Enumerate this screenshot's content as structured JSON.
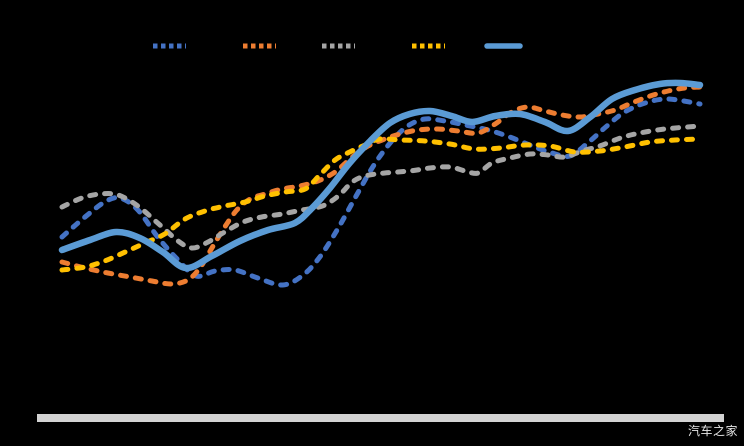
{
  "watermark": {
    "text": "汽车之家",
    "color": "rgba(255,255,255,0.9)"
  },
  "axis_bar": {
    "color": "#D3D3D3"
  },
  "background_color": "#000000",
  "legend": {
    "items": [
      {
        "name": "blue",
        "color": "#4472C4",
        "style": "dashed"
      },
      {
        "name": "orange",
        "color": "#ED7D31",
        "style": "dashed"
      },
      {
        "name": "gray",
        "color": "#A5A5A5",
        "style": "dashed"
      },
      {
        "name": "yellow",
        "color": "#FFC000",
        "style": "dashed"
      },
      {
        "name": "light-blue",
        "color": "#5B9BD5",
        "style": "solid"
      }
    ]
  },
  "chart_data": {
    "type": "line",
    "title": "",
    "note": "No axis tick labels, gridlines or data labels are visible; x and y are estimated on a relative 0-100 scale read from line positions.",
    "xlim": [
      0,
      100
    ],
    "ylim": [
      0,
      100
    ],
    "grid": false,
    "legend_position": "top",
    "series": [
      {
        "name": "blue",
        "color": "#4472C4",
        "style": "dashed",
        "points": [
          [
            0,
            37.2
          ],
          [
            3.6,
            45.2
          ],
          [
            6.7,
            51.2
          ],
          [
            9.1,
            52.8
          ],
          [
            11.9,
            48
          ],
          [
            15,
            37.2
          ],
          [
            18.2,
            28
          ],
          [
            21,
            21.6
          ],
          [
            24,
            23.6
          ],
          [
            27.1,
            24
          ],
          [
            30.7,
            20.8
          ],
          [
            34.6,
            18
          ],
          [
            37.8,
            22
          ],
          [
            40.4,
            29.2
          ],
          [
            43.3,
            40.8
          ],
          [
            46.1,
            53.6
          ],
          [
            48.9,
            66
          ],
          [
            51.7,
            75.6
          ],
          [
            54.2,
            81.6
          ],
          [
            56.9,
            84.4
          ],
          [
            60,
            83.6
          ],
          [
            63.2,
            82
          ],
          [
            66.8,
            80
          ],
          [
            70.2,
            77.2
          ],
          [
            73.7,
            73.6
          ],
          [
            76.8,
            70.8
          ],
          [
            79.6,
            69.6
          ],
          [
            82.4,
            74.8
          ],
          [
            85.4,
            81.6
          ],
          [
            88.2,
            87.2
          ],
          [
            91.4,
            90.8
          ],
          [
            95,
            92.4
          ],
          [
            100,
            90.4
          ]
        ]
      },
      {
        "name": "orange",
        "color": "#ED7D31",
        "style": "dashed",
        "points": [
          [
            0,
            27.2
          ],
          [
            3.6,
            24.8
          ],
          [
            7.2,
            22.8
          ],
          [
            10.7,
            21.2
          ],
          [
            14.1,
            19.6
          ],
          [
            17.2,
            18.4
          ],
          [
            19.7,
            20
          ],
          [
            21.6,
            24.8
          ],
          [
            23.5,
            32.8
          ],
          [
            25.4,
            40.8
          ],
          [
            27.4,
            48
          ],
          [
            29.5,
            52.4
          ],
          [
            31.8,
            54.4
          ],
          [
            34.5,
            56.4
          ],
          [
            37.3,
            57.6
          ],
          [
            40.1,
            59.6
          ],
          [
            42.8,
            63.2
          ],
          [
            45.5,
            69.2
          ],
          [
            48,
            73.6
          ],
          [
            50.6,
            76.4
          ],
          [
            53,
            78.4
          ],
          [
            55.8,
            80
          ],
          [
            58.9,
            80.4
          ],
          [
            62.1,
            79.6
          ],
          [
            65.2,
            78.8
          ],
          [
            67.9,
            82.4
          ],
          [
            70.5,
            87.2
          ],
          [
            73,
            89.2
          ],
          [
            75.7,
            87.6
          ],
          [
            78.4,
            86
          ],
          [
            81.2,
            85.2
          ],
          [
            84,
            86.4
          ],
          [
            86.7,
            88
          ],
          [
            89.3,
            90.8
          ],
          [
            92.2,
            93.6
          ],
          [
            95,
            95.6
          ],
          [
            97.6,
            96.8
          ],
          [
            100,
            97.2
          ]
        ]
      },
      {
        "name": "gray",
        "color": "#A5A5A5",
        "style": "dashed",
        "points": [
          [
            0,
            49.2
          ],
          [
            3.1,
            52.8
          ],
          [
            6,
            54.4
          ],
          [
            8.8,
            54
          ],
          [
            11.9,
            49.6
          ],
          [
            15,
            42.8
          ],
          [
            18.2,
            35.6
          ],
          [
            20.4,
            32.8
          ],
          [
            22.9,
            35.2
          ],
          [
            25.5,
            39.2
          ],
          [
            28.4,
            43.2
          ],
          [
            31.3,
            45.2
          ],
          [
            34.5,
            46.4
          ],
          [
            37.6,
            48
          ],
          [
            40.8,
            49.6
          ],
          [
            43.3,
            53.6
          ],
          [
            45.5,
            59.2
          ],
          [
            47.5,
            61.6
          ],
          [
            50.6,
            62.8
          ],
          [
            54.5,
            63.6
          ],
          [
            57.7,
            64.8
          ],
          [
            60.8,
            65.2
          ],
          [
            63.2,
            63.6
          ],
          [
            65.2,
            62.8
          ],
          [
            67.4,
            66.8
          ],
          [
            70.2,
            68.8
          ],
          [
            73.4,
            70.4
          ],
          [
            76.2,
            70
          ],
          [
            78.8,
            69.2
          ],
          [
            81.5,
            71.6
          ],
          [
            84.3,
            73.6
          ],
          [
            87.5,
            76.8
          ],
          [
            90.6,
            78.8
          ],
          [
            94.5,
            80.4
          ],
          [
            100,
            81.6
          ]
        ]
      },
      {
        "name": "yellow",
        "color": "#FFC000",
        "style": "dashed",
        "points": [
          [
            0,
            24
          ],
          [
            3.6,
            25.2
          ],
          [
            6.7,
            27.6
          ],
          [
            9.9,
            31.2
          ],
          [
            13,
            34.8
          ],
          [
            16.1,
            38.4
          ],
          [
            19.3,
            44.4
          ],
          [
            22.4,
            47.6
          ],
          [
            25.5,
            49.6
          ],
          [
            28.7,
            51.2
          ],
          [
            31.8,
            53.6
          ],
          [
            35,
            55.2
          ],
          [
            38.1,
            56.4
          ],
          [
            40.4,
            62
          ],
          [
            42.8,
            68
          ],
          [
            45.1,
            71.2
          ],
          [
            47.5,
            74
          ],
          [
            49.8,
            76.4
          ],
          [
            53,
            76
          ],
          [
            56.9,
            75.6
          ],
          [
            60.8,
            74.4
          ],
          [
            64.7,
            72.4
          ],
          [
            68.7,
            72.8
          ],
          [
            72.6,
            74
          ],
          [
            76.5,
            73.6
          ],
          [
            80.4,
            71.2
          ],
          [
            84.3,
            71.6
          ],
          [
            88.2,
            73.2
          ],
          [
            92.2,
            75.2
          ],
          [
            96.1,
            76
          ],
          [
            100,
            76.4
          ]
        ]
      },
      {
        "name": "light-blue",
        "color": "#5B9BD5",
        "style": "solid",
        "points": [
          [
            0,
            32
          ],
          [
            4.4,
            36
          ],
          [
            8.5,
            39.2
          ],
          [
            12.2,
            36.8
          ],
          [
            15.8,
            31.2
          ],
          [
            19.4,
            24.8
          ],
          [
            23.5,
            29.6
          ],
          [
            27.9,
            35.6
          ],
          [
            32.3,
            40
          ],
          [
            36.5,
            42.8
          ],
          [
            39.2,
            48.8
          ],
          [
            42,
            56.8
          ],
          [
            45.1,
            66.8
          ],
          [
            48.3,
            75.6
          ],
          [
            51.4,
            82.8
          ],
          [
            54.5,
            86.4
          ],
          [
            57.7,
            87.6
          ],
          [
            61.1,
            85.6
          ],
          [
            64.3,
            83.2
          ],
          [
            67.9,
            85.6
          ],
          [
            71.8,
            86.4
          ],
          [
            75.7,
            83.2
          ],
          [
            79.3,
            79.6
          ],
          [
            82.8,
            85.2
          ],
          [
            86.2,
            92.4
          ],
          [
            89.8,
            96
          ],
          [
            93.7,
            98.4
          ],
          [
            96.9,
            98.8
          ],
          [
            100,
            98
          ]
        ]
      }
    ]
  }
}
